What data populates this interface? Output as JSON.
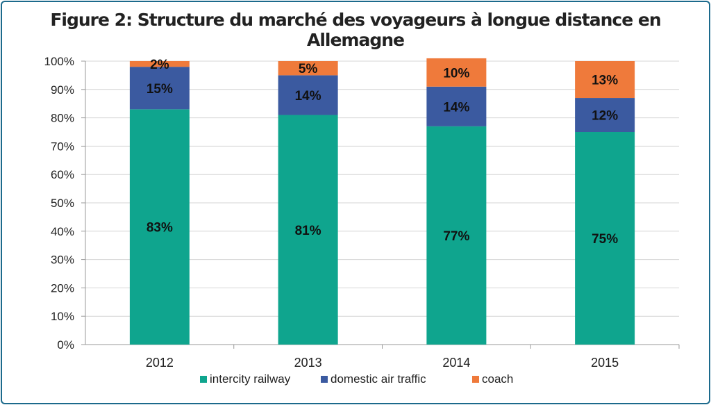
{
  "chart_data": {
    "type": "bar",
    "stacked": true,
    "title": "Figure 2: Structure du marché des voyageurs à longue distance en Allemagne",
    "categories": [
      "2012",
      "2013",
      "2014",
      "2015"
    ],
    "series": [
      {
        "name": "intercity railway",
        "color": "#0fa58e",
        "values": [
          83,
          81,
          77,
          75
        ],
        "labels": [
          "83%",
          "81%",
          "77%",
          "75%"
        ]
      },
      {
        "name": "domestic air traffic",
        "color": "#3b5aa0",
        "values": [
          15,
          14,
          14,
          12
        ],
        "labels": [
          "15%",
          "14%",
          "14%",
          "12%"
        ]
      },
      {
        "name": "coach",
        "color": "#ef7a3b",
        "values": [
          2,
          5,
          10,
          13
        ],
        "labels": [
          "2%",
          "5%",
          "10%",
          "13%"
        ]
      }
    ],
    "yticks": [
      "0%",
      "10%",
      "20%",
      "30%",
      "40%",
      "50%",
      "60%",
      "70%",
      "80%",
      "90%",
      "100%"
    ],
    "ylim": [
      0,
      100
    ],
    "grid": true,
    "legend_position": "bottom"
  }
}
